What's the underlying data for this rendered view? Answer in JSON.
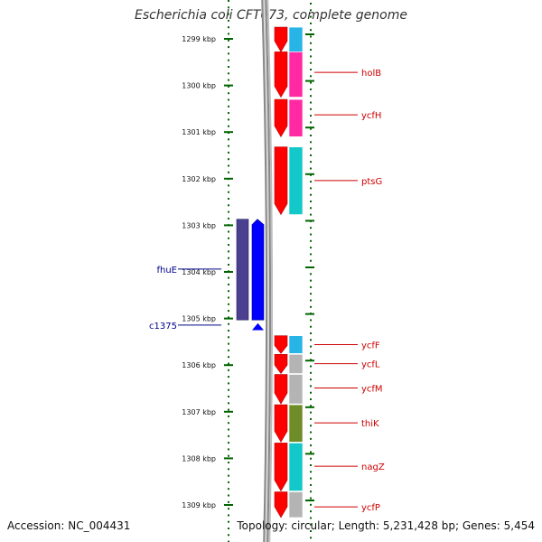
{
  "title": "Escherichia coli CFT073, complete genome",
  "footer": {
    "accession": "Accession: NC_004431",
    "summary": "Topology: circular; Length: 5,231,428 bp; Genes: 5,454"
  },
  "axis": {
    "unit": "kbp",
    "ticks": [
      {
        "kbp": 1299,
        "label": "1299 kbp"
      },
      {
        "kbp": 1300,
        "label": "1300 kbp"
      },
      {
        "kbp": 1301,
        "label": "1301 kbp"
      },
      {
        "kbp": 1302,
        "label": "1302 kbp"
      },
      {
        "kbp": 1303,
        "label": "1303 kbp"
      },
      {
        "kbp": 1304,
        "label": "1304 kbp"
      },
      {
        "kbp": 1305,
        "label": "1305 kbp"
      },
      {
        "kbp": 1306,
        "label": "1306 kbp"
      },
      {
        "kbp": 1307,
        "label": "1307 kbp"
      },
      {
        "kbp": 1308,
        "label": "1308 kbp"
      },
      {
        "kbp": 1309,
        "label": "1309 kbp"
      }
    ]
  },
  "colors": {
    "cds": "#ff0000",
    "minus_gene": "#0000ff",
    "minus_category": "#4b3f8f",
    "forward_label": "#cc0000",
    "reverse_label": "#00008b",
    "tick": "#006400",
    "backbone": "#888888"
  },
  "forward_genes": [
    {
      "name": "",
      "start": 1298.75,
      "end": 1299.28,
      "category_color": "#27b5e8"
    },
    {
      "name": "holB",
      "start": 1299.28,
      "end": 1300.25,
      "category_color": "#ff2aa3"
    },
    {
      "name": "ycfH",
      "start": 1300.3,
      "end": 1301.1,
      "category_color": "#ff2aa3"
    },
    {
      "name": "ptsG",
      "start": 1301.32,
      "end": 1302.77,
      "category_color": "#13c8c8"
    },
    {
      "name": "ycfF",
      "start": 1305.37,
      "end": 1305.75,
      "category_color": "#27b5e8"
    },
    {
      "name": "ycfL",
      "start": 1305.77,
      "end": 1306.18,
      "category_color": "#b4b4b4"
    },
    {
      "name": "ycfM",
      "start": 1306.2,
      "end": 1306.83,
      "category_color": "#b4b4b4"
    },
    {
      "name": "thiK",
      "start": 1306.85,
      "end": 1307.65,
      "category_color": "#6e8c28"
    },
    {
      "name": "nagZ",
      "start": 1307.67,
      "end": 1308.7,
      "category_color": "#13c8c8"
    },
    {
      "name": "ycfP",
      "start": 1308.72,
      "end": 1309.27,
      "category_color": "#b4b4b4"
    }
  ],
  "reverse_genes": [
    {
      "name": "fhuE",
      "start": 1302.87,
      "end": 1305.03
    },
    {
      "name": "c1375",
      "start": 1305.1,
      "end": 1305.25
    }
  ],
  "forward_labels": [
    {
      "name": "holB",
      "kbp": 1299.72
    },
    {
      "name": "ycfH",
      "kbp": 1300.63
    },
    {
      "name": "ptsG",
      "kbp": 1302.04
    },
    {
      "name": "ycfF",
      "kbp": 1305.56
    },
    {
      "name": "ycfL",
      "kbp": 1305.97
    },
    {
      "name": "ycfM",
      "kbp": 1306.49
    },
    {
      "name": "thiK",
      "kbp": 1307.24
    },
    {
      "name": "nagZ",
      "kbp": 1308.17
    },
    {
      "name": "ycfP",
      "kbp": 1309.04
    }
  ],
  "reverse_labels": [
    {
      "name": "fhuE",
      "kbp": 1303.94
    },
    {
      "name": "c1375",
      "kbp": 1305.14
    }
  ]
}
